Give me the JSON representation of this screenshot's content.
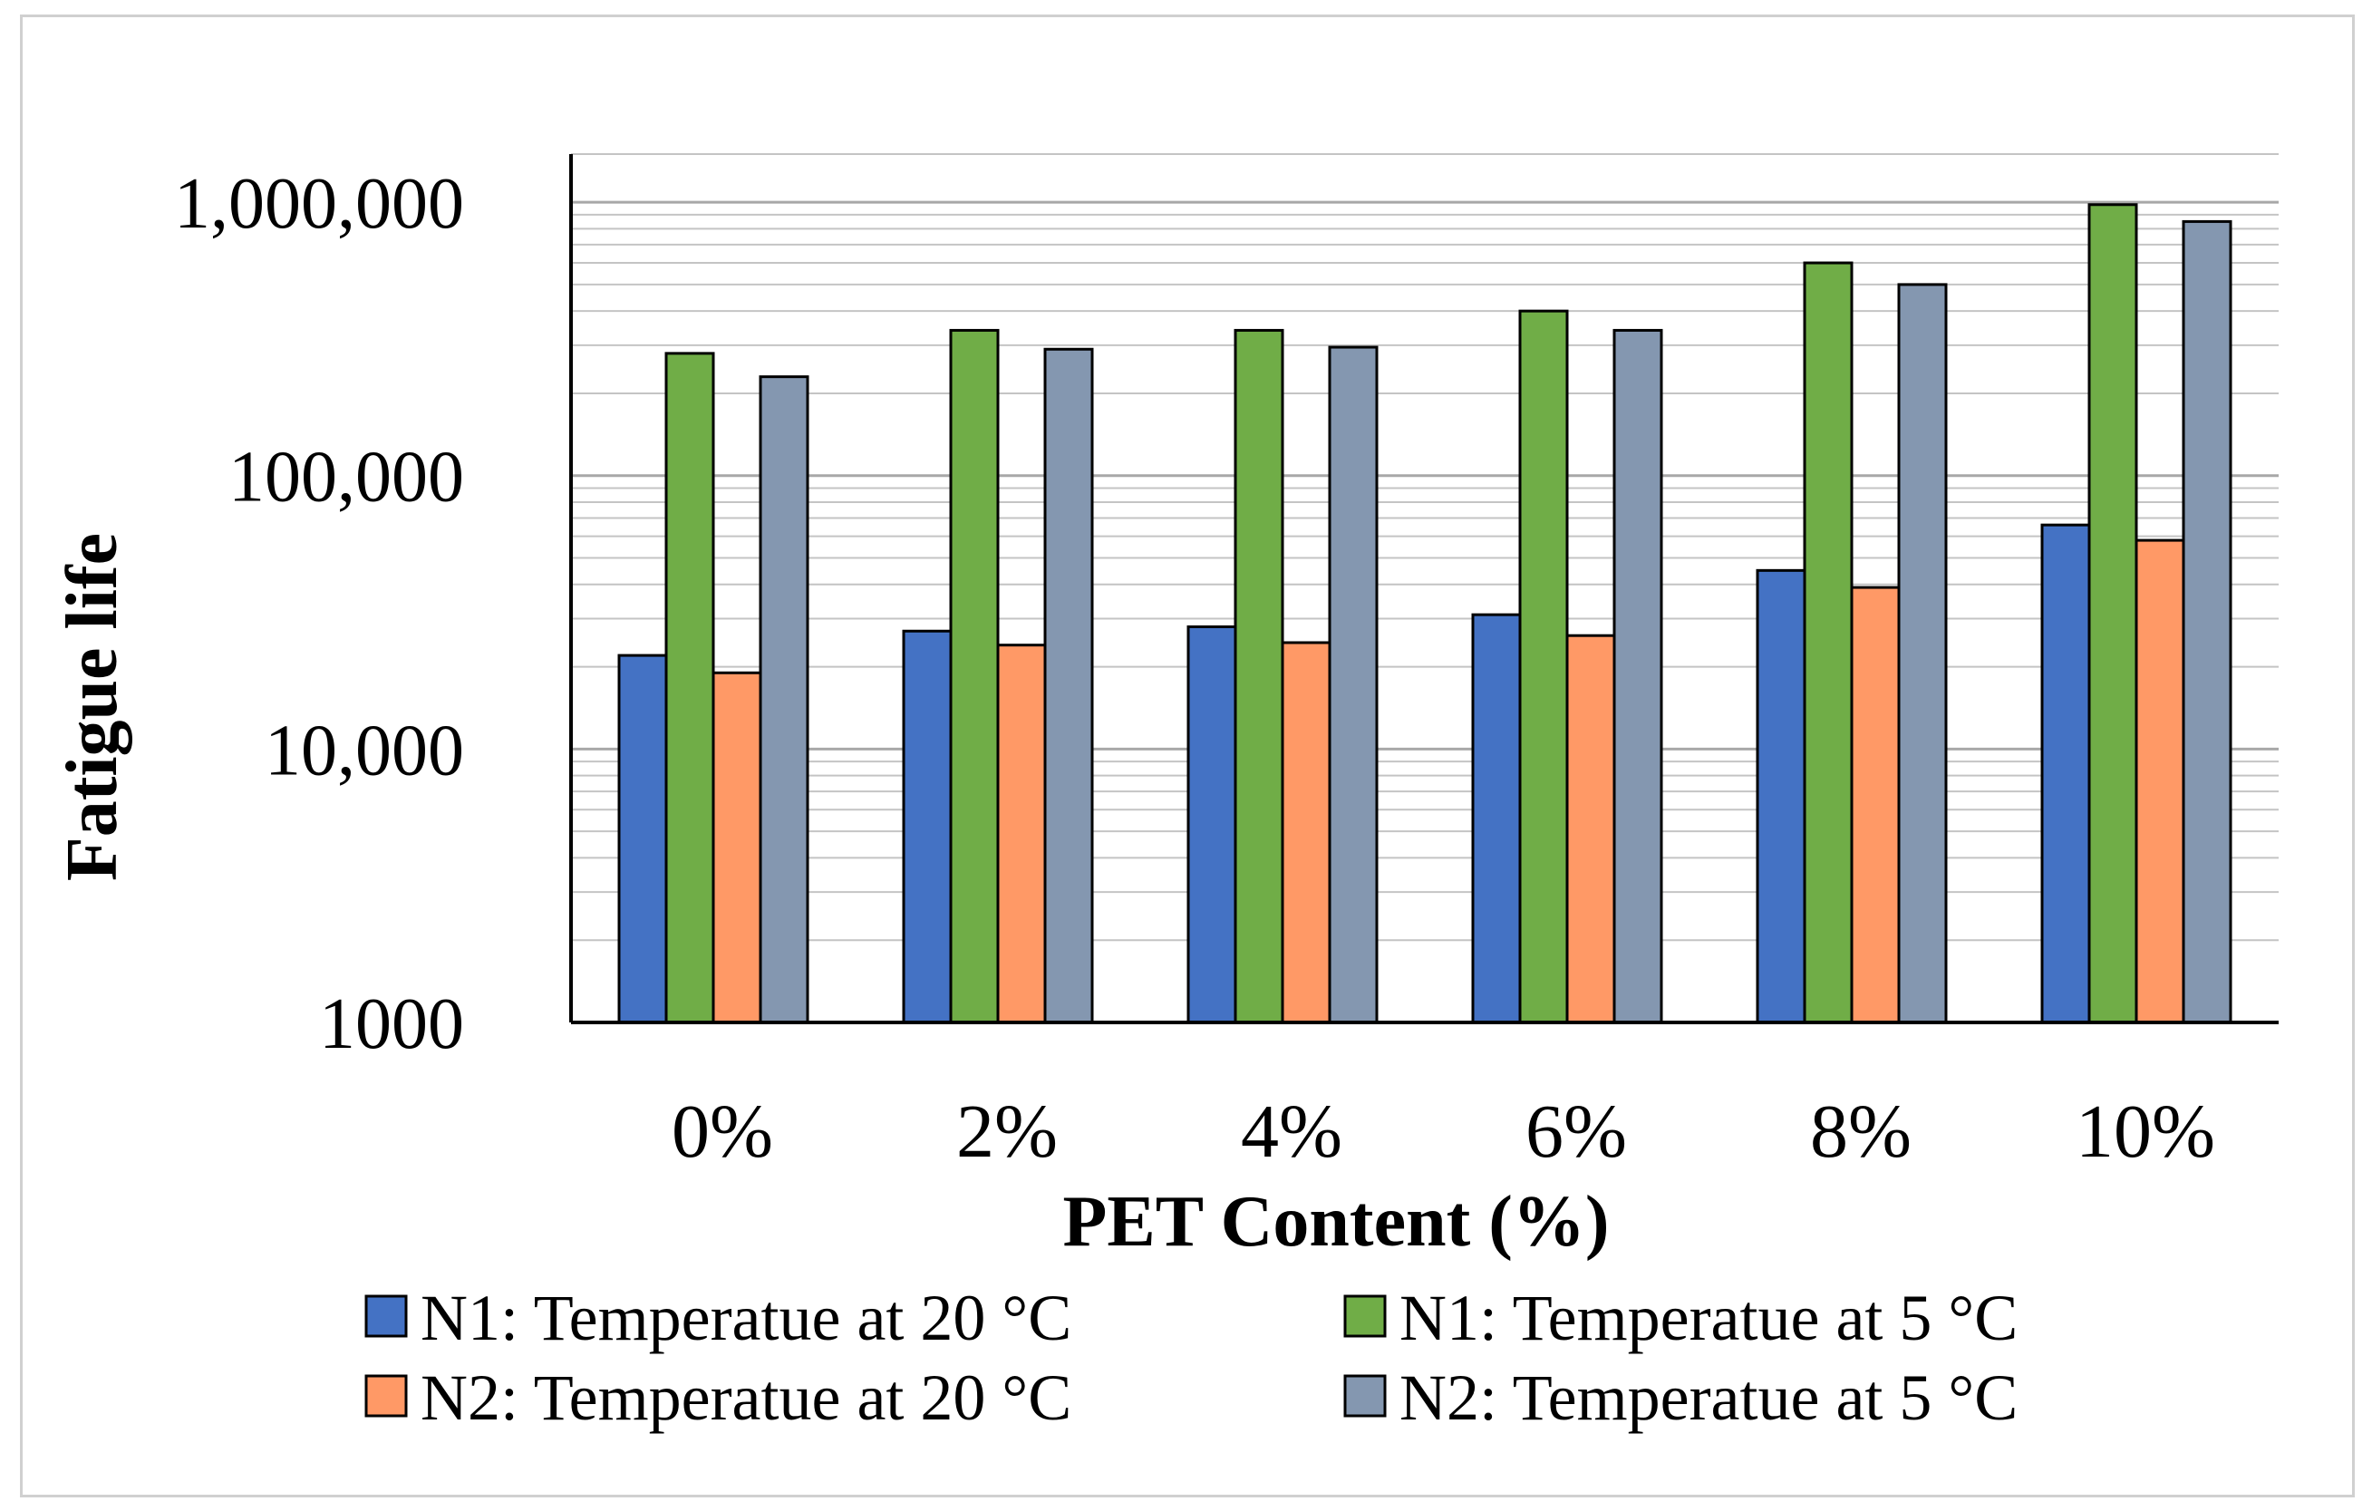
{
  "chart_data": {
    "type": "bar",
    "title": "",
    "xlabel": "PET Content (%)",
    "ylabel": "Fatigue life",
    "yscale": "log",
    "ylim": [
      1000,
      1500000
    ],
    "y_tick_values": [
      1000,
      10000,
      100000,
      1000000
    ],
    "y_tick_labels": [
      "1000",
      "10,000",
      "100,000",
      "1,000,000"
    ],
    "categories": [
      "0%",
      "2%",
      "4%",
      "6%",
      "8%",
      "10%"
    ],
    "grid": true,
    "legend_position": "bottom",
    "series": [
      {
        "name": "N1: Temperatue at 20 °C",
        "color": "#4472C4",
        "values": [
          22000,
          27000,
          28000,
          31000,
          45000,
          66000
        ]
      },
      {
        "name": "N1: Temperatue at 5 °C",
        "color": "#70AD47",
        "values": [
          280000,
          340000,
          340000,
          400000,
          600000,
          980000
        ]
      },
      {
        "name": "N2: Temperatue at 20 °C",
        "color": "#FF9966",
        "values": [
          19000,
          24000,
          24500,
          26000,
          39000,
          58000
        ]
      },
      {
        "name": "N2: Temperatue at 5 °C",
        "color": "#8497B0",
        "values": [
          230000,
          290000,
          295000,
          340000,
          500000,
          850000
        ]
      }
    ]
  }
}
